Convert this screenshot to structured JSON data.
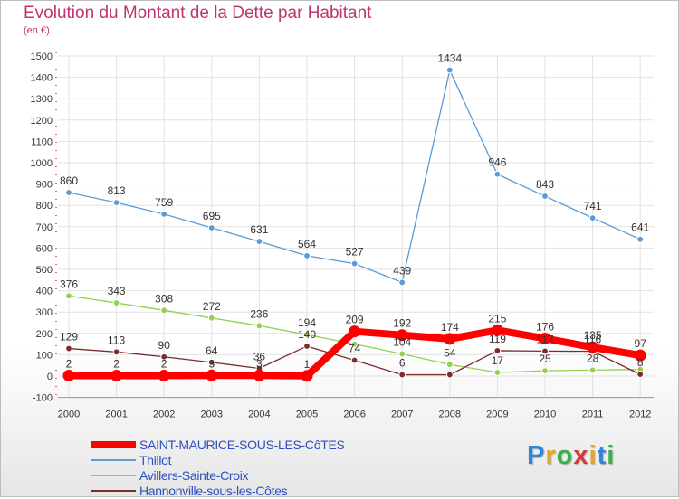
{
  "title": "Evolution du Montant de la Dette par Habitant",
  "subtitle": "(en €)",
  "logo_text": "Proxiti",
  "chart_data": {
    "type": "line",
    "title": "Evolution du Montant de la Dette par Habitant",
    "ylabel": "(en €)",
    "x": [
      "2000",
      "2001",
      "2002",
      "2003",
      "2004",
      "2005",
      "2006",
      "2007",
      "2008",
      "2009",
      "2010",
      "2011",
      "2012"
    ],
    "ylim": [
      -100,
      1500
    ],
    "yticks": [
      -100,
      0,
      100,
      200,
      300,
      400,
      500,
      600,
      700,
      800,
      900,
      1000,
      1100,
      1200,
      1300,
      1400,
      1500
    ],
    "grid": true,
    "legend_position": "bottom-left",
    "series": [
      {
        "name": "SAINT-MAURICE-SOUS-LES-CôTES",
        "color": "#ff0000",
        "style": "thick",
        "values": [
          2,
          2,
          2,
          3,
          3,
          1,
          209,
          192,
          174,
          215,
          176,
          135,
          97
        ],
        "labels": [
          "2",
          "2",
          "2",
          "3",
          "3",
          "1",
          "209",
          "192",
          "174",
          "215",
          "176",
          "135",
          "97"
        ]
      },
      {
        "name": "Thillot",
        "color": "#5b9bd5",
        "style": "thin",
        "values": [
          860,
          813,
          759,
          695,
          631,
          564,
          527,
          439,
          1434,
          946,
          843,
          741,
          641
        ],
        "labels": [
          "860",
          "813",
          "759",
          "695",
          "631",
          "564",
          "527",
          "439",
          "1434",
          "946",
          "843",
          "741",
          "641"
        ]
      },
      {
        "name": "Avillers-Sainte-Croix",
        "color": "#92d050",
        "style": "thin",
        "values": [
          376,
          343,
          308,
          272,
          236,
          194,
          150,
          104,
          54,
          17,
          25,
          28,
          31
        ],
        "labels": [
          "376",
          "343",
          "308",
          "272",
          "236",
          "194",
          "",
          "104",
          "54",
          "17",
          "25",
          "28",
          ""
        ]
      },
      {
        "name": "Hannonville-sous-les-Côtes",
        "color": "#7b2c2c",
        "style": "thin",
        "values": [
          129,
          113,
          90,
          64,
          36,
          140,
          74,
          6,
          6,
          119,
          117,
          116,
          8
        ],
        "labels": [
          "129",
          "113",
          "90",
          "64",
          "36",
          "140",
          "74",
          "6",
          "",
          "119",
          "117",
          "116",
          "8"
        ]
      }
    ]
  }
}
